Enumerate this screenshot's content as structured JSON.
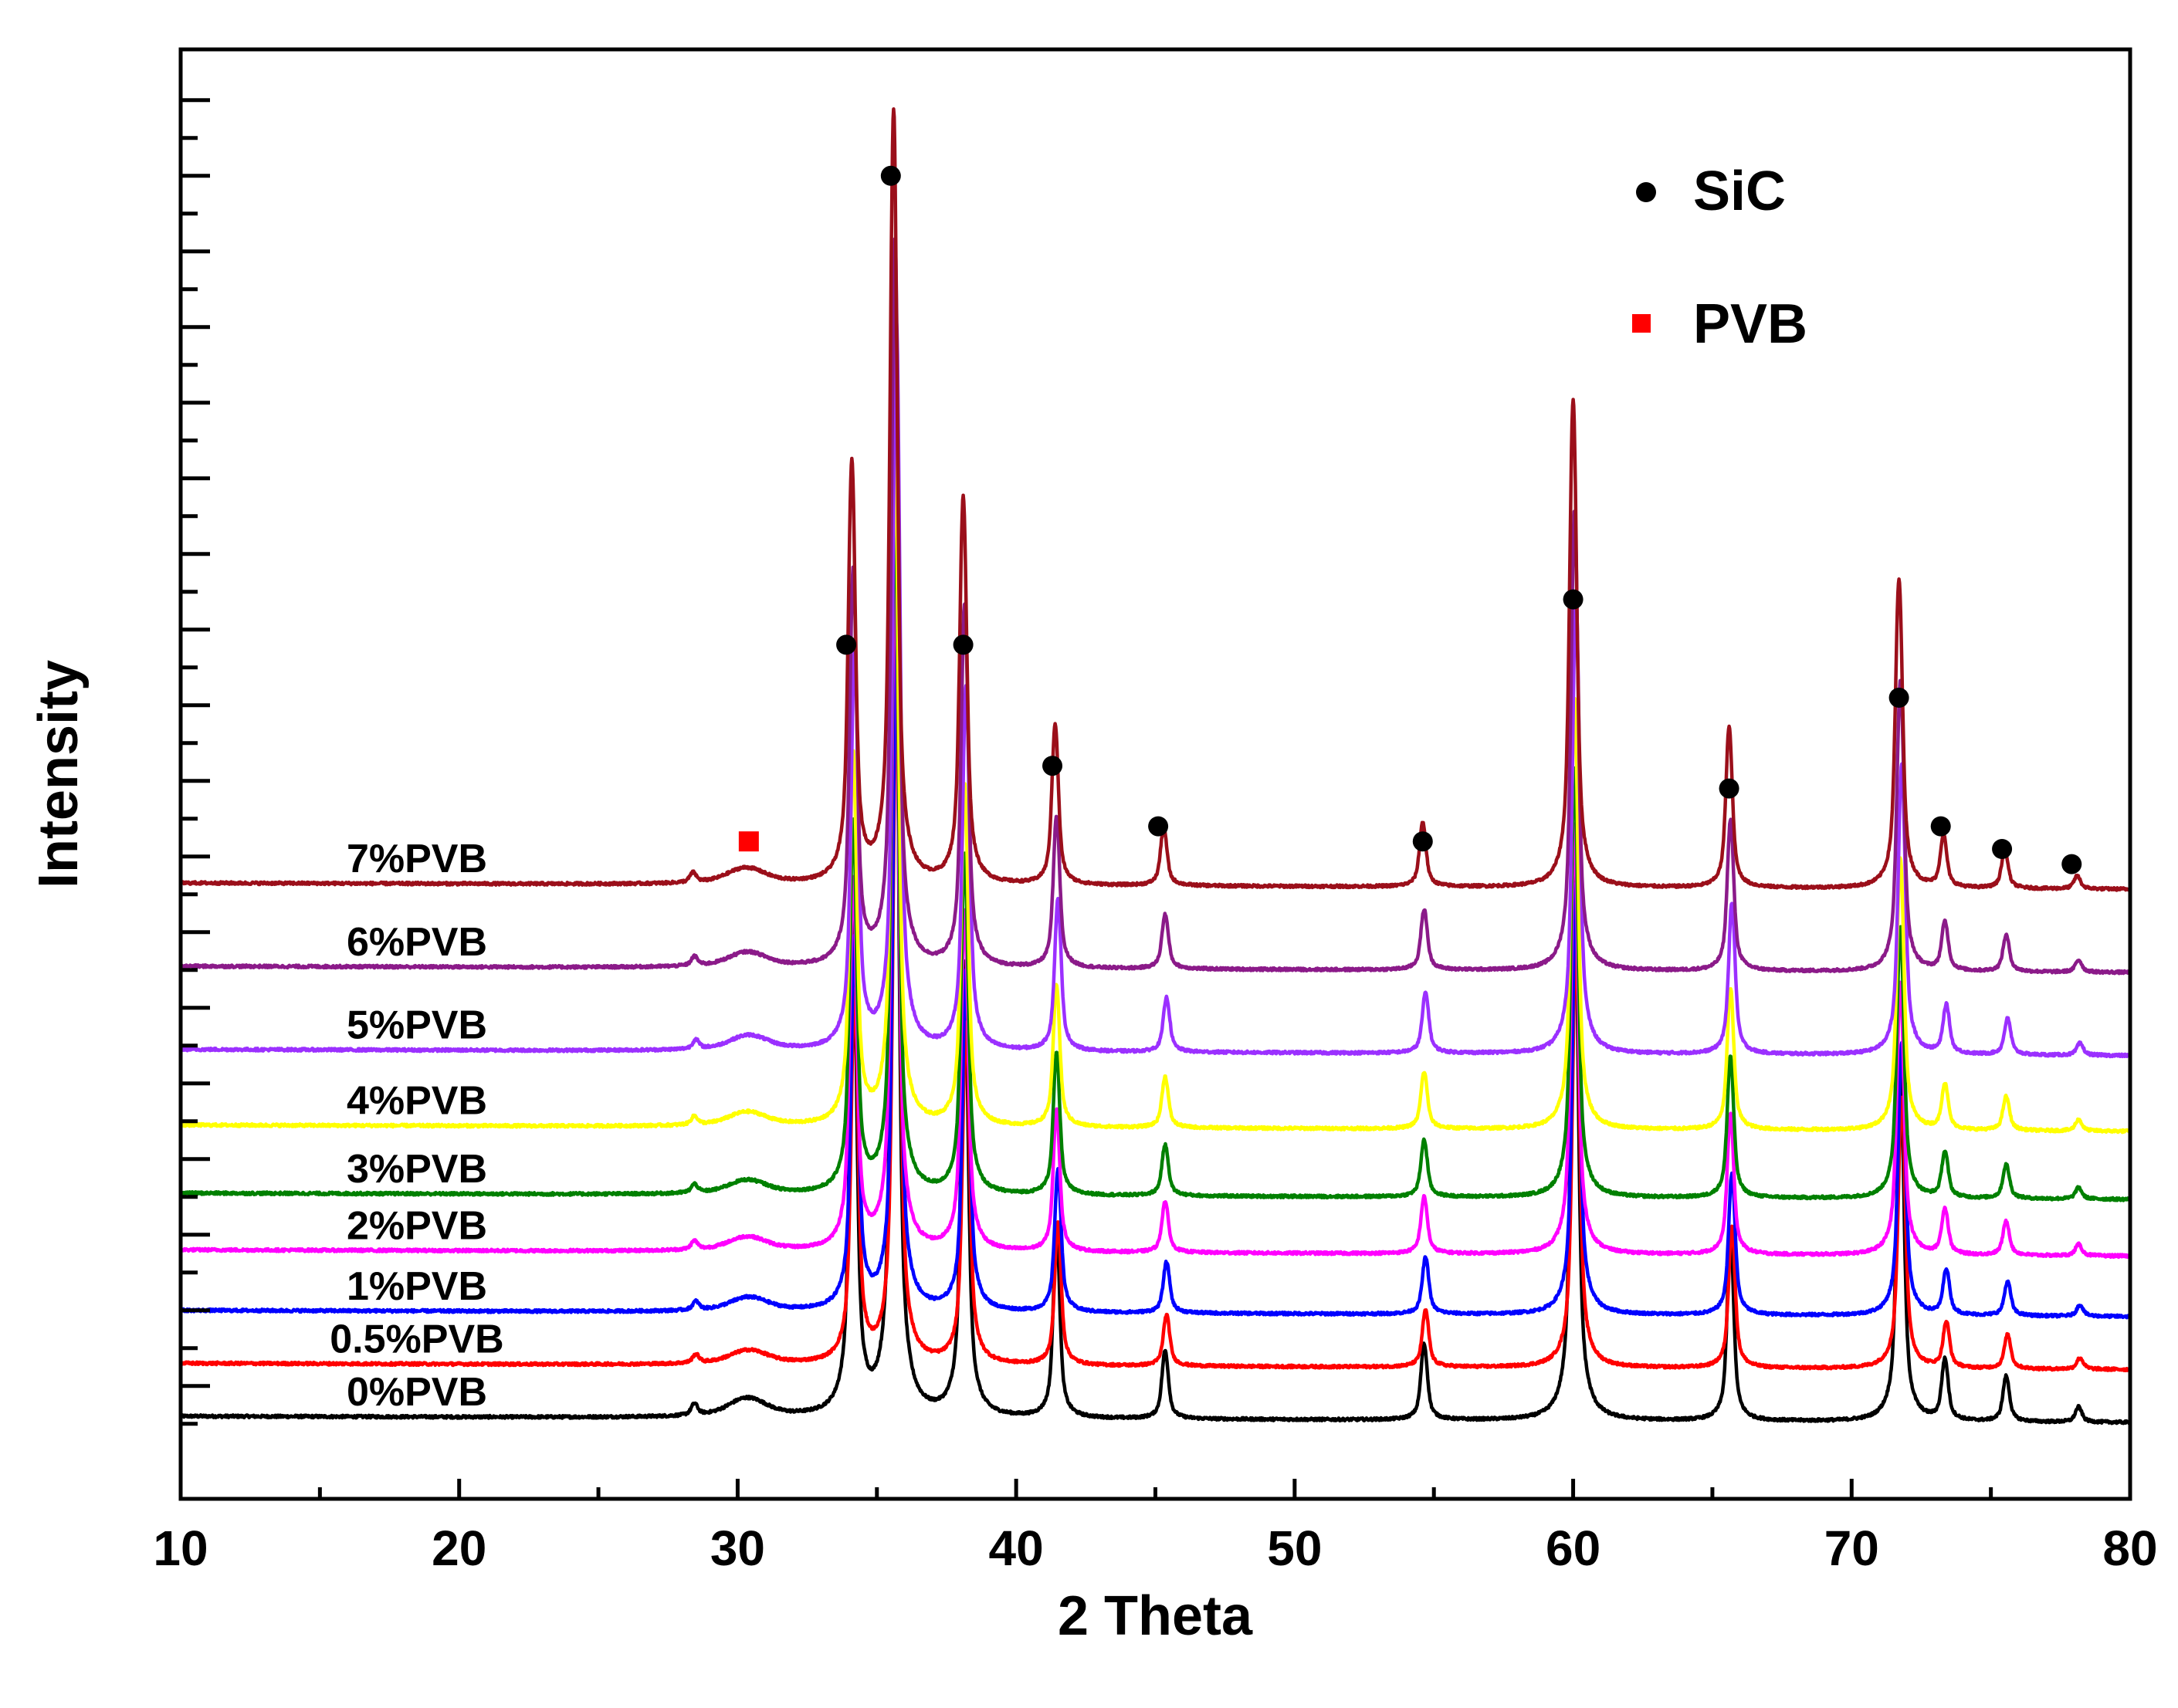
{
  "chart_data": {
    "type": "line",
    "title": "",
    "xlabel": "2 Theta",
    "ylabel": "Intensity",
    "xlim": [
      10,
      80
    ],
    "x_ticks": [
      "10",
      "20",
      "30",
      "40",
      "50",
      "60",
      "70",
      "80"
    ],
    "y_tick_labels_shown": false,
    "y_baseline_units": [
      0,
      1,
      2,
      3,
      4,
      5,
      6,
      7,
      8
    ],
    "legend": [
      {
        "label": "SiC",
        "marker": "circle",
        "color": "#000000"
      },
      {
        "label": "PVB",
        "marker": "square",
        "color": "#ff0000"
      }
    ],
    "peaks": [
      {
        "two_theta": 34.1,
        "height": 6.5,
        "width": 0.22
      },
      {
        "two_theta": 35.6,
        "height": 12.0,
        "width": 0.22
      },
      {
        "two_theta": 38.1,
        "height": 6.0,
        "width": 0.22
      },
      {
        "two_theta": 41.4,
        "height": 2.5,
        "width": 0.2
      },
      {
        "two_theta": 45.3,
        "height": 0.9,
        "width": 0.2
      },
      {
        "two_theta": 54.6,
        "height": 1.0,
        "width": 0.2
      },
      {
        "two_theta": 60.0,
        "height": 7.6,
        "width": 0.22
      },
      {
        "two_theta": 65.6,
        "height": 2.5,
        "width": 0.2
      },
      {
        "two_theta": 71.7,
        "height": 4.8,
        "width": 0.22
      },
      {
        "two_theta": 73.3,
        "height": 0.8,
        "width": 0.2
      },
      {
        "two_theta": 75.5,
        "height": 0.6,
        "width": 0.2
      },
      {
        "two_theta": 78.1,
        "height": 0.2,
        "width": 0.2
      },
      {
        "two_theta": 28.4,
        "height": 0.15,
        "width": 0.2
      },
      {
        "two_theta": 30.3,
        "height": 0.25,
        "width": 1.2
      }
    ],
    "series": [
      {
        "name": "0%PVB",
        "color": "#000000",
        "offset": 0.0,
        "shift": 0.05,
        "scale": 1.0
      },
      {
        "name": "0.5%PVB",
        "color": "#ff0000",
        "offset": 0.7,
        "shift": 0.1,
        "scale": 0.75
      },
      {
        "name": "1%PVB",
        "color": "#0000ff",
        "offset": 1.4,
        "shift": 0.1,
        "scale": 0.75
      },
      {
        "name": "2%PVB",
        "color": "#ff00ff",
        "offset": 2.2,
        "shift": 0.05,
        "scale": 0.75
      },
      {
        "name": "3%PVB",
        "color": "#008000",
        "offset": 2.95,
        "shift": 0.05,
        "scale": 0.75
      },
      {
        "name": "4%PVB",
        "color": "#ffff00",
        "offset": 3.85,
        "shift": 0.05,
        "scale": 0.75
      },
      {
        "name": "5%PVB",
        "color": "#9b30ff",
        "offset": 4.85,
        "shift": 0.1,
        "scale": 0.8
      },
      {
        "name": "6%PVB",
        "color": "#8b1a89",
        "offset": 5.95,
        "shift": 0.05,
        "scale": 0.8
      },
      {
        "name": "7%PVB",
        "color": "#9b0f1a",
        "offset": 7.05,
        "shift": 0.0,
        "scale": 0.85
      }
    ],
    "sic_markers": [
      {
        "two_theta": 33.9,
        "level": 10.2
      },
      {
        "two_theta": 35.5,
        "level": 16.4
      },
      {
        "two_theta": 38.1,
        "level": 10.2
      },
      {
        "two_theta": 41.3,
        "level": 8.6
      },
      {
        "two_theta": 45.1,
        "level": 7.8
      },
      {
        "two_theta": 54.6,
        "level": 7.6
      },
      {
        "two_theta": 60.0,
        "level": 10.8
      },
      {
        "two_theta": 65.6,
        "level": 8.3
      },
      {
        "two_theta": 71.7,
        "level": 9.5
      },
      {
        "two_theta": 73.2,
        "level": 7.8
      },
      {
        "two_theta": 75.4,
        "level": 7.5
      },
      {
        "two_theta": 77.9,
        "level": 7.3
      }
    ],
    "pvb_markers": [
      {
        "two_theta": 30.4,
        "level": 7.6
      }
    ]
  }
}
